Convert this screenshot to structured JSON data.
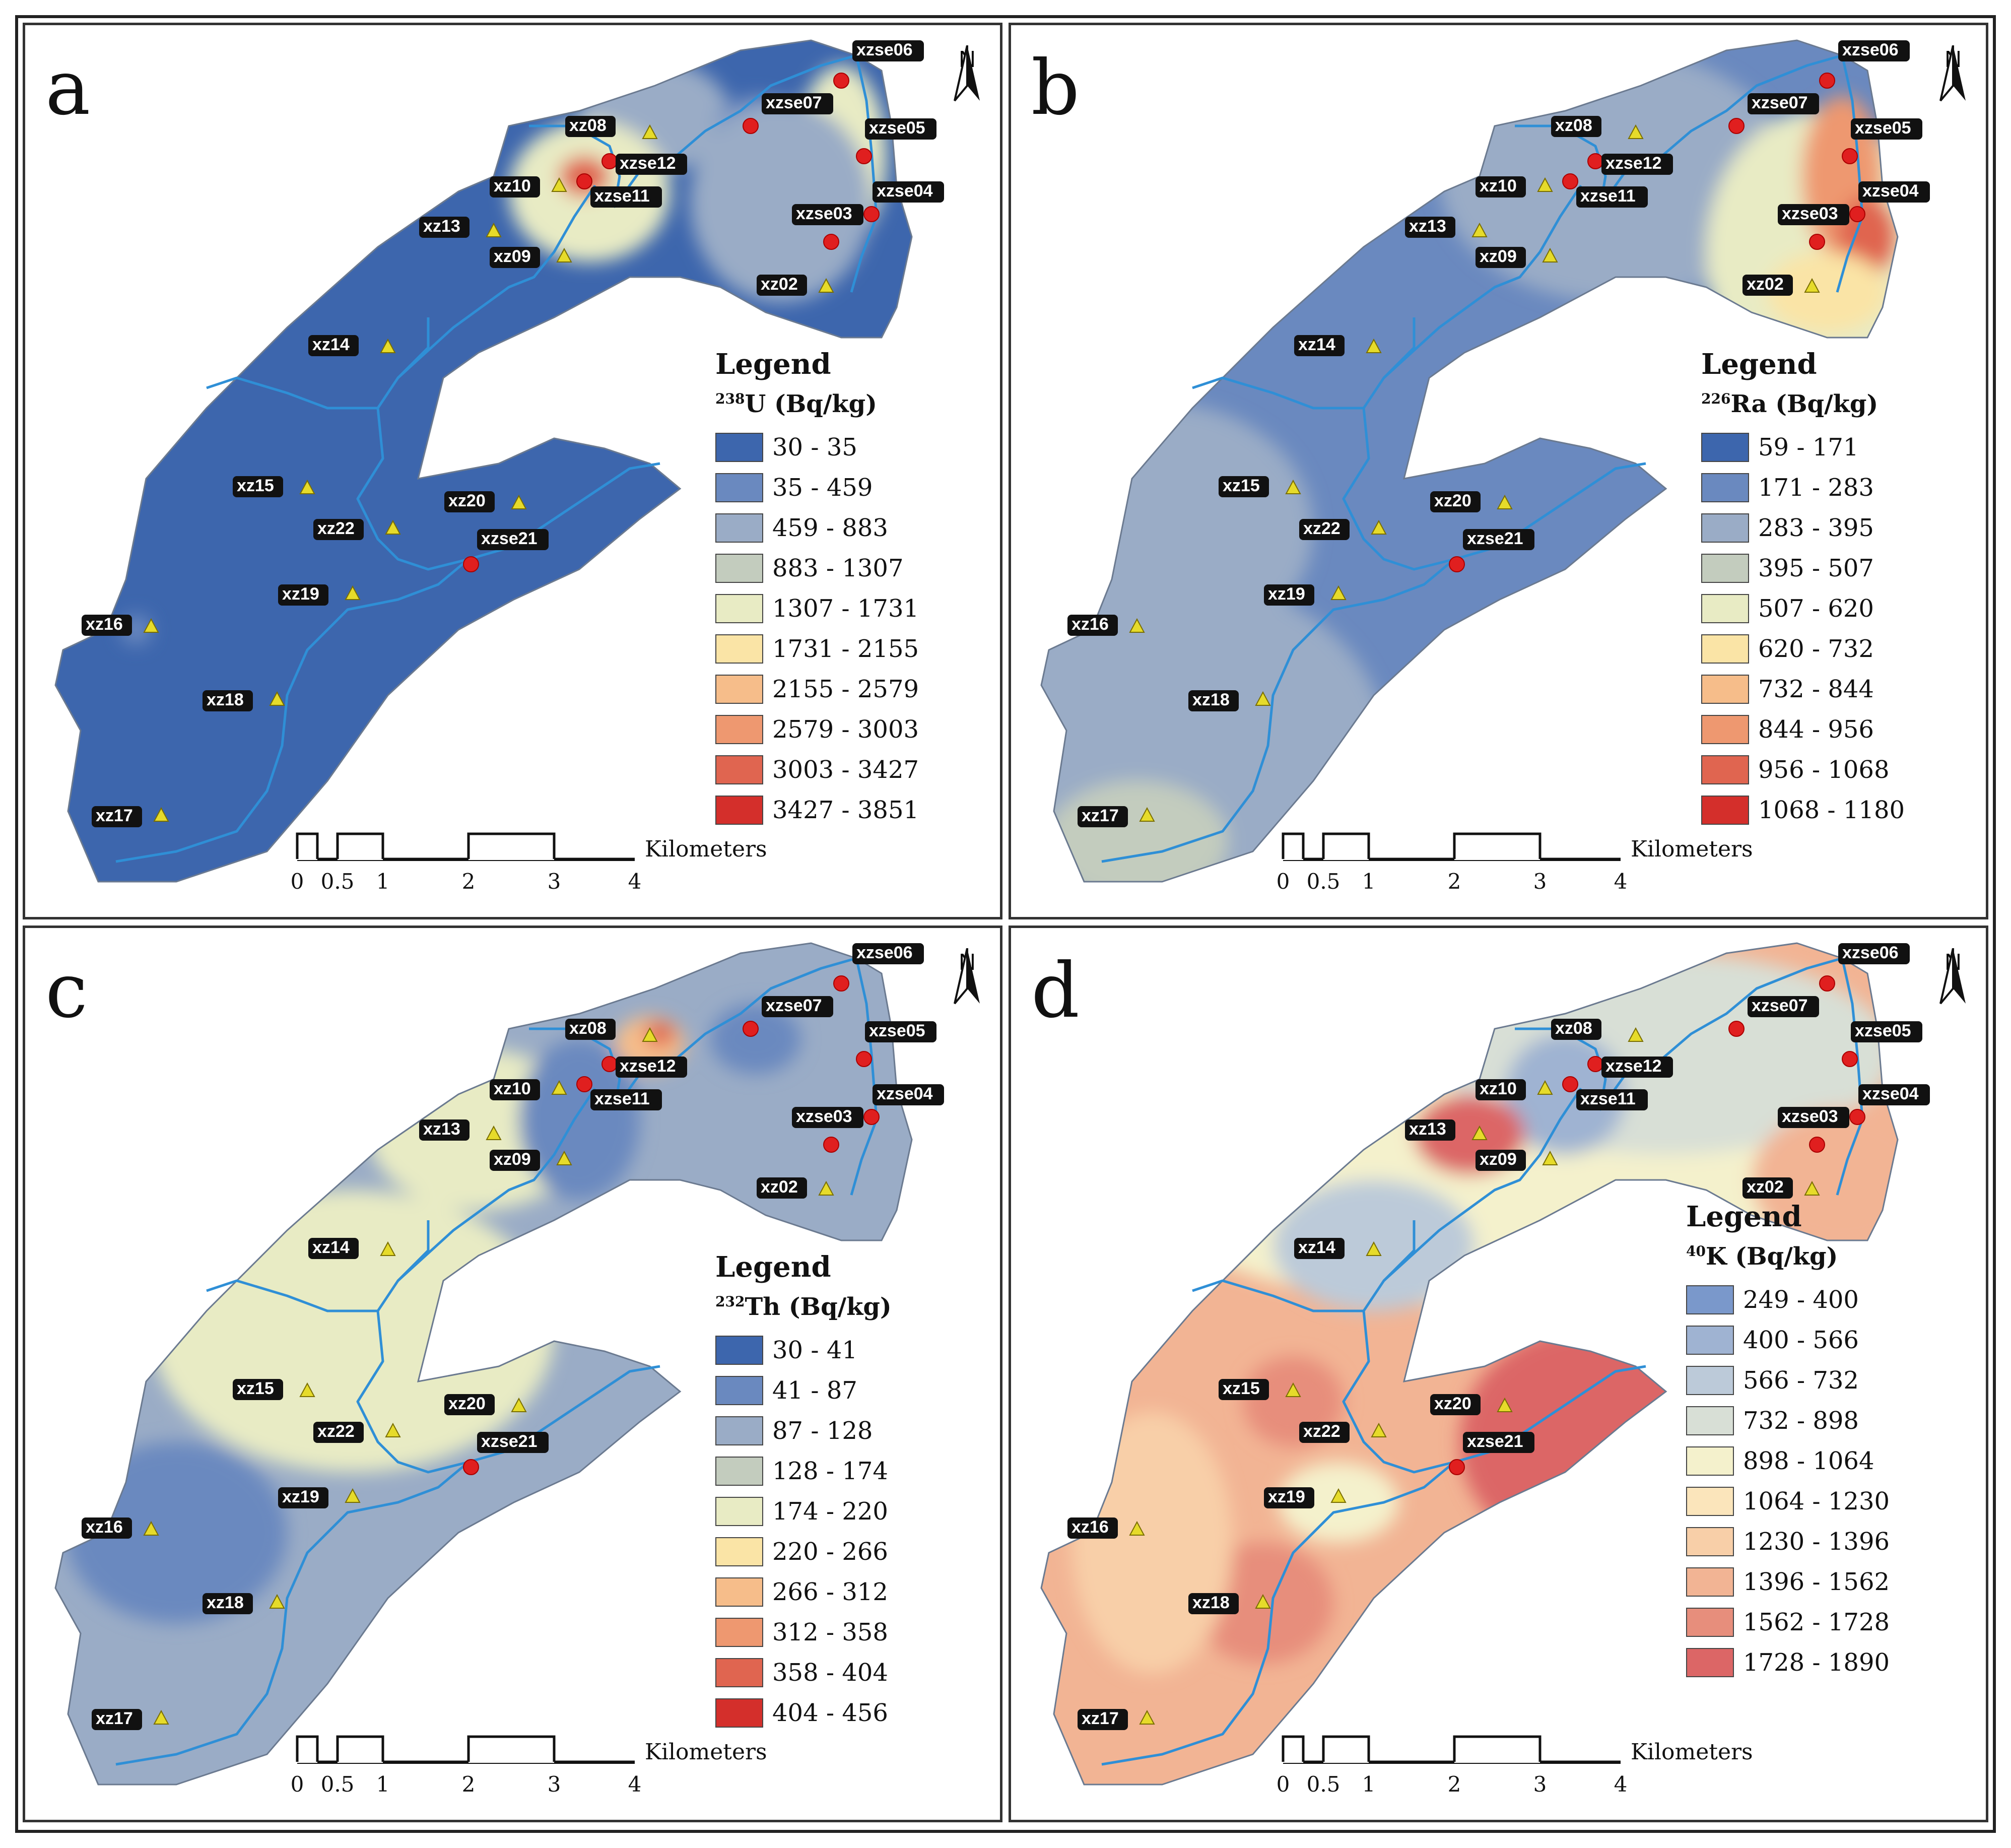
{
  "figure": {
    "scale_bar": {
      "ticks": [
        "0",
        "0.5",
        "1",
        "2",
        "3",
        "4"
      ],
      "unit": "Kilometers"
    },
    "north_label": "N",
    "legend_heading": "Legend",
    "panels": [
      {
        "letter": "a",
        "isotope_mass": "238",
        "isotope": "U",
        "unit": " (Bq/kg)",
        "classes": [
          {
            "range": "30 - 35",
            "color": "#3d66ad"
          },
          {
            "range": "35 - 459",
            "color": "#6a89bf"
          },
          {
            "range": "459 - 883",
            "color": "#9aacc6"
          },
          {
            "range": "883 - 1307",
            "color": "#c3ccbe"
          },
          {
            "range": "1307 - 1731",
            "color": "#e8ebc4"
          },
          {
            "range": "1731 - 2155",
            "color": "#fae4a6"
          },
          {
            "range": "2155 - 2579",
            "color": "#f6bd8a"
          },
          {
            "range": "2579 - 3003",
            "color": "#ee9870"
          },
          {
            "range": "3003 - 3427",
            "color": "#e06550"
          },
          {
            "range": "3427 - 3851",
            "color": "#d42f2b"
          }
        ]
      },
      {
        "letter": "b",
        "isotope_mass": "226",
        "isotope": "Ra",
        "unit": " (Bq/kg)",
        "classes": [
          {
            "range": "59 - 171",
            "color": "#3d66ad"
          },
          {
            "range": "171 - 283",
            "color": "#6a89bf"
          },
          {
            "range": "283 - 395",
            "color": "#9aacc6"
          },
          {
            "range": "395 - 507",
            "color": "#c3ccbe"
          },
          {
            "range": "507 - 620",
            "color": "#e8ebc4"
          },
          {
            "range": "620 - 732",
            "color": "#fae4a6"
          },
          {
            "range": "732 - 844",
            "color": "#f6bd8a"
          },
          {
            "range": "844 - 956",
            "color": "#ee9870"
          },
          {
            "range": "956 - 1068",
            "color": "#e06550"
          },
          {
            "range": "1068 - 1180",
            "color": "#d42f2b"
          }
        ]
      },
      {
        "letter": "c",
        "isotope_mass": "232",
        "isotope": "Th",
        "unit": " (Bq/kg)",
        "classes": [
          {
            "range": "30 - 41",
            "color": "#3d66ad"
          },
          {
            "range": "41 - 87",
            "color": "#6a89bf"
          },
          {
            "range": "87 - 128",
            "color": "#9aacc6"
          },
          {
            "range": "128 - 174",
            "color": "#c3ccbe"
          },
          {
            "range": "174 - 220",
            "color": "#e8ebc4"
          },
          {
            "range": "220 - 266",
            "color": "#fae4a6"
          },
          {
            "range": "266 - 312",
            "color": "#f6bd8a"
          },
          {
            "range": "312 - 358",
            "color": "#ee9870"
          },
          {
            "range": "358 - 404",
            "color": "#e06550"
          },
          {
            "range": "404 - 456",
            "color": "#d42f2b"
          }
        ]
      },
      {
        "letter": "d",
        "isotope_mass": "40",
        "isotope": "K",
        "unit": " (Bq/kg)",
        "classes": [
          {
            "range": "249 - 400",
            "color": "#7a98cb"
          },
          {
            "range": "400 - 566",
            "color": "#9fb3d2"
          },
          {
            "range": "566 - 732",
            "color": "#bccad9"
          },
          {
            "range": "732 - 898",
            "color": "#d8dfd6"
          },
          {
            "range": "898 - 1064",
            "color": "#f4f1cc"
          },
          {
            "range": "1064 - 1230",
            "color": "#fbe5bb"
          },
          {
            "range": "1230 - 1396",
            "color": "#f8cfa8"
          },
          {
            "range": "1396 - 1562",
            "color": "#f2b494"
          },
          {
            "range": "1562 - 1728",
            "color": "#e78e7c"
          },
          {
            "range": "1728 - 1890",
            "color": "#dc6666"
          }
        ]
      }
    ],
    "site_labels": [
      "xzse06",
      "xzse07",
      "xzse05",
      "xz08",
      "xzse12",
      "xz10",
      "xzse11",
      "xzse04",
      "xzse03",
      "xz13",
      "xz09",
      "xz02",
      "xz14",
      "xz15",
      "xz20",
      "xz22",
      "xzse21",
      "xz19",
      "xz16",
      "xz18",
      "xz17"
    ]
  }
}
